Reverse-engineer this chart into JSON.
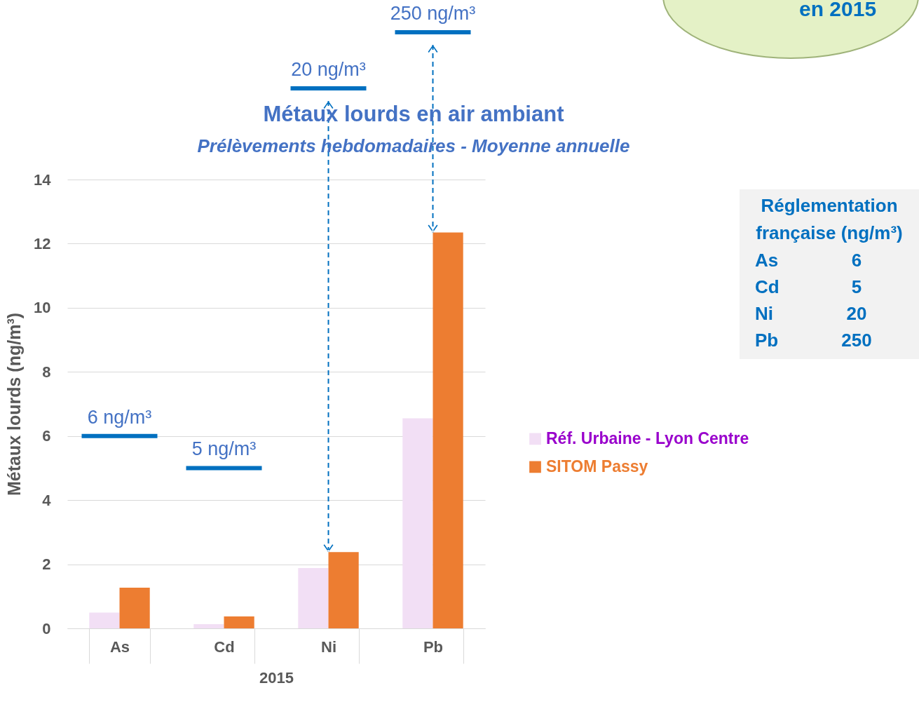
{
  "chart_data": [
    {
      "type": "bar",
      "title": "Métaux lourds en air ambiant",
      "subtitle": "Prélèvements hebdomadaires - Moyenne annuelle",
      "xlabel": "2015",
      "ylabel": "Métaux lourds (ng/m³)",
      "categories": [
        "As",
        "Cd",
        "Ni",
        "Pb"
      ],
      "series": [
        {
          "name": "Réf. Urbaine - Lyon Centre",
          "color": "#f2dff5",
          "values": [
            0.49,
            0.13,
            1.88,
            6.55
          ]
        },
        {
          "name": "SITOM Passy",
          "color": "#ed7d31",
          "values": [
            1.27,
            0.37,
            2.38,
            12.35
          ]
        }
      ],
      "ylim": [
        0,
        14
      ],
      "yticks": [
        0,
        2,
        4,
        6,
        8,
        10,
        12,
        14
      ],
      "grid": "y",
      "legend": "right",
      "ref_lines": [
        {
          "axis": "y",
          "value": 6,
          "label": "6 ng/m³",
          "color": "#0070c0"
        },
        {
          "axis": "y",
          "value": 5,
          "label": "5 ng/m³",
          "color": "#0070c0"
        }
      ],
      "annotations": [
        "20 ng/m³",
        "250 ng/m³",
        "en 2015"
      ]
    },
    {
      "type": "other",
      "title": "Réglementation française (ng/m³)",
      "categories": [
        "As",
        "Cd",
        "Ni",
        "Pb"
      ],
      "values": [
        6,
        5,
        20,
        250
      ],
      "data_labels": true
    }
  ]
}
